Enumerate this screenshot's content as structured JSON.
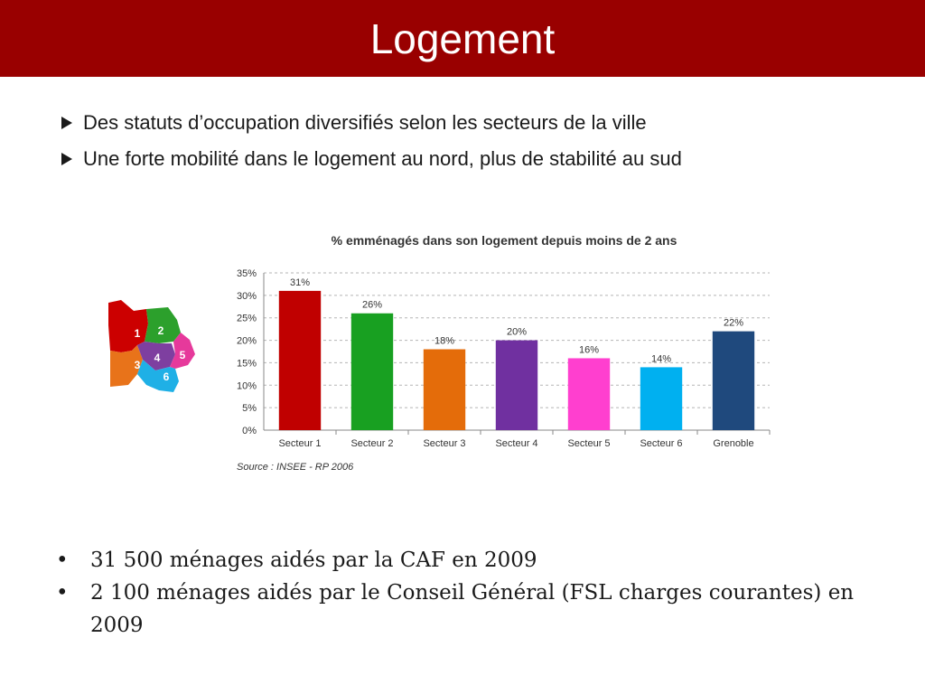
{
  "slide": {
    "title": "Logement",
    "accent_color": "#990000"
  },
  "top_bullets": [
    "Des statuts d’occupation diversifiés selon les secteurs de la ville",
    "Une forte mobilité dans le logement au nord, plus de stabilité au sud"
  ],
  "bottom_bullets": {
    "bullet_glyph": "•",
    "items": [
      "31 500 ménages aidés par la CAF en 2009",
      "2 100 ménages aidés par le Conseil Général (FSL charges courantes) en 2009"
    ]
  },
  "map": {
    "labels": [
      "1",
      "2",
      "3",
      "4",
      "5",
      "6"
    ],
    "colors": [
      "#cc0000",
      "#2ca02c",
      "#e8731a",
      "#7e3fa0",
      "#e6399b",
      "#1fb0e6"
    ]
  },
  "chart_data": {
    "type": "bar",
    "title": "% emménagés dans son logement depuis moins de 2 ans",
    "categories": [
      "Secteur 1",
      "Secteur 2",
      "Secteur 3",
      "Secteur 4",
      "Secteur 5",
      "Secteur 6",
      "Grenoble"
    ],
    "values": [
      31,
      26,
      18,
      20,
      16,
      14,
      22
    ],
    "value_labels": [
      "31%",
      "26%",
      "18%",
      "20%",
      "16%",
      "14%",
      "22%"
    ],
    "colors": [
      "#c00000",
      "#18a021",
      "#e46c0a",
      "#7030a0",
      "#ff3fcf",
      "#00b0f0",
      "#1f497d"
    ],
    "ylim": [
      0,
      35
    ],
    "yticks": [
      "0%",
      "5%",
      "10%",
      "15%",
      "20%",
      "25%",
      "30%",
      "35%"
    ],
    "grid": true,
    "source": "Source : INSEE - RP 2006"
  }
}
